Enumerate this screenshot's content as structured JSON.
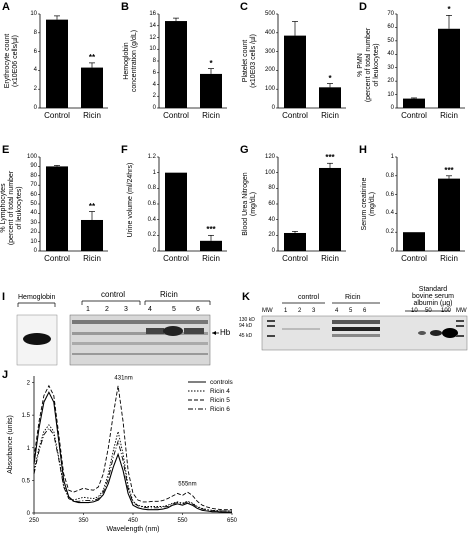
{
  "bar_panels": [
    {
      "id": "A",
      "ylabel": "Erythrocyte count\n(x10E06 cells/µl)",
      "ticks": [
        "0",
        "2",
        "4",
        "6",
        "8",
        "10"
      ],
      "ylim": [
        0,
        10
      ]
    },
    {
      "id": "B",
      "ylabel": "Hemoglobin\nconcentration (g/dL)",
      "ticks": [
        "0",
        "2",
        "4",
        "6",
        "8",
        "10",
        "12",
        "14",
        "16"
      ],
      "ylim": [
        0,
        16
      ]
    },
    {
      "id": "C",
      "ylabel": "Platelet count\n(x10E03 cells /µl)",
      "ticks": [
        "0",
        "100",
        "200",
        "300",
        "400",
        "500"
      ],
      "ylim": [
        0,
        500
      ]
    },
    {
      "id": "D",
      "ylabel": "% PMN\n(percent of total number\nof leukocytes)",
      "ticks": [
        "0",
        "10",
        "20",
        "30",
        "40",
        "50",
        "60",
        "70"
      ],
      "ylim": [
        0,
        70
      ]
    },
    {
      "id": "E",
      "ylabel": "% Lymphocytes\n(percent of total number\nof leukocytes)",
      "ticks": [
        "0",
        "10",
        "20",
        "30",
        "40",
        "50",
        "60",
        "70",
        "80",
        "90",
        "100"
      ],
      "ylim": [
        0,
        100
      ]
    },
    {
      "id": "F",
      "ylabel": "Urine volume (ml/24hrs)",
      "ticks": [
        "0",
        "0.2",
        "0.4",
        "0.6",
        "0.8",
        "1",
        "1.2"
      ],
      "ylim": [
        0,
        1.2
      ]
    },
    {
      "id": "G",
      "ylabel": "Blood Urea Nitrogen\n(mg/dL)",
      "ticks": [
        "0",
        "20",
        "40",
        "60",
        "80",
        "100",
        "120"
      ],
      "ylim": [
        0,
        120
      ]
    },
    {
      "id": "H",
      "ylabel": "Serum creatinine\n(mg/dL)",
      "ticks": [
        "0",
        "0.2",
        "0.4",
        "0.6",
        "0.8",
        "1"
      ],
      "ylim": [
        0,
        1
      ]
    }
  ],
  "chart_data": [
    {
      "type": "bar",
      "panel": "A",
      "categories": [
        "Control",
        "Ricin"
      ],
      "values": [
        9.4,
        4.3
      ],
      "errors": [
        0.4,
        0.5
      ],
      "significance": [
        "",
        "**"
      ],
      "ylabel": "Erythrocyte count (x10E06 cells/µl)",
      "ylim": [
        0,
        10
      ]
    },
    {
      "type": "bar",
      "panel": "B",
      "categories": [
        "Control",
        "Ricin"
      ],
      "values": [
        14.8,
        5.8
      ],
      "errors": [
        0.5,
        0.9
      ],
      "significance": [
        "",
        "*"
      ],
      "ylabel": "Hemoglobin concentration (g/dL)",
      "ylim": [
        0,
        16
      ]
    },
    {
      "type": "bar",
      "panel": "C",
      "categories": [
        "Control",
        "Ricin"
      ],
      "values": [
        385,
        110
      ],
      "errors": [
        75,
        20
      ],
      "significance": [
        "",
        "*"
      ],
      "ylabel": "Platelet count (x10E03 cells /µl)",
      "ylim": [
        0,
        500
      ]
    },
    {
      "type": "bar",
      "panel": "D",
      "categories": [
        "Control",
        "Ricin"
      ],
      "values": [
        7,
        59
      ],
      "errors": [
        0.5,
        10
      ],
      "significance": [
        "",
        "*"
      ],
      "ylabel": "% PMN (percent of total number of leukocytes)",
      "ylim": [
        0,
        70
      ]
    },
    {
      "type": "bar",
      "panel": "E",
      "categories": [
        "Control",
        "Ricin"
      ],
      "values": [
        90,
        33
      ],
      "errors": [
        1,
        9
      ],
      "significance": [
        "",
        "**"
      ],
      "ylabel": "% Lymphocytes (percent of total number of leukocytes)",
      "ylim": [
        0,
        100
      ]
    },
    {
      "type": "bar",
      "panel": "F",
      "categories": [
        "Control",
        "Ricin"
      ],
      "values": [
        1.0,
        0.13
      ],
      "errors": [
        0,
        0.07
      ],
      "significance": [
        "",
        "***"
      ],
      "ylabel": "Urine volume (ml/24hrs)",
      "ylim": [
        0,
        1.2
      ]
    },
    {
      "type": "bar",
      "panel": "G",
      "categories": [
        "Control",
        "Ricin"
      ],
      "values": [
        23,
        106
      ],
      "errors": [
        2,
        6
      ],
      "significance": [
        "",
        "***"
      ],
      "ylabel": "Blood Urea Nitrogen (mg/dL)",
      "ylim": [
        0,
        120
      ]
    },
    {
      "type": "bar",
      "panel": "H",
      "categories": [
        "Control",
        "Ricin"
      ],
      "values": [
        0.2,
        0.77
      ],
      "errors": [
        0,
        0.03
      ],
      "significance": [
        "",
        "***"
      ],
      "ylabel": "Serum creatinine (mg/dL)",
      "ylim": [
        0,
        1
      ]
    },
    {
      "type": "line",
      "panel": "J",
      "x": [
        250,
        260,
        270,
        280,
        290,
        300,
        310,
        320,
        330,
        340,
        350,
        360,
        370,
        380,
        390,
        400,
        410,
        420,
        430,
        440,
        450,
        460,
        470,
        480,
        490,
        500,
        510,
        520,
        530,
        540,
        550,
        560,
        570,
        580,
        590,
        600,
        610,
        620,
        630,
        640,
        650
      ],
      "series": [
        {
          "name": "controls",
          "values": [
            0.75,
            1.3,
            1.7,
            1.85,
            1.7,
            1.1,
            0.5,
            0.25,
            0.18,
            0.16,
            0.16,
            0.16,
            0.17,
            0.2,
            0.28,
            0.45,
            0.7,
            0.9,
            0.65,
            0.3,
            0.12,
            0.08,
            0.06,
            0.05,
            0.05,
            0.05,
            0.06,
            0.08,
            0.12,
            0.14,
            0.12,
            0.15,
            0.12,
            0.07,
            0.04,
            0.03,
            0.02,
            0.02,
            0.01,
            0.01,
            0.01
          ]
        },
        {
          "name": "Ricin 4",
          "values": [
            0.65,
            1.0,
            1.25,
            1.35,
            1.25,
            0.85,
            0.42,
            0.24,
            0.2,
            0.22,
            0.24,
            0.23,
            0.22,
            0.25,
            0.35,
            0.6,
            0.95,
            1.25,
            0.9,
            0.42,
            0.18,
            0.12,
            0.1,
            0.1,
            0.1,
            0.1,
            0.1,
            0.12,
            0.15,
            0.17,
            0.15,
            0.18,
            0.15,
            0.1,
            0.07,
            0.05,
            0.04,
            0.04,
            0.03,
            0.03,
            0.03
          ]
        },
        {
          "name": "Ricin 5",
          "values": [
            0.85,
            1.4,
            1.8,
            1.95,
            1.8,
            1.2,
            0.6,
            0.35,
            0.32,
            0.35,
            0.38,
            0.36,
            0.35,
            0.4,
            0.6,
            1.0,
            1.5,
            1.95,
            1.4,
            0.65,
            0.3,
            0.2,
            0.17,
            0.17,
            0.18,
            0.18,
            0.19,
            0.22,
            0.26,
            0.3,
            0.27,
            0.32,
            0.27,
            0.18,
            0.12,
            0.09,
            0.07,
            0.06,
            0.05,
            0.05,
            0.05
          ]
        },
        {
          "name": "Ricin 6",
          "values": [
            0.6,
            0.95,
            1.2,
            1.3,
            1.2,
            0.82,
            0.4,
            0.22,
            0.18,
            0.18,
            0.19,
            0.19,
            0.19,
            0.22,
            0.32,
            0.52,
            0.85,
            1.1,
            0.8,
            0.38,
            0.16,
            0.11,
            0.09,
            0.08,
            0.08,
            0.08,
            0.09,
            0.1,
            0.14,
            0.16,
            0.14,
            0.17,
            0.14,
            0.09,
            0.06,
            0.05,
            0.04,
            0.03,
            0.03,
            0.03,
            0.03
          ]
        }
      ],
      "annotations": [
        "431nm",
        "555nm"
      ],
      "xlabel": "Wavelength (nm)",
      "ylabel": "Absorbance (units)",
      "xticks": [
        "250",
        "350",
        "450",
        "550",
        "650"
      ],
      "xlim": [
        250,
        650
      ],
      "ylim": [
        0,
        2.1
      ],
      "yticks": [
        "0",
        "0.5",
        "1",
        "1.5",
        "2"
      ],
      "legend_position": "top-right"
    }
  ],
  "gel_I": {
    "label": "I",
    "hemoglobin_label": "Hemoglobin",
    "control_label": "control",
    "ricin_label": "Ricin",
    "lanes": [
      "1",
      "2",
      "3",
      "4",
      "5",
      "6"
    ],
    "band_label": "Hb"
  },
  "gel_K": {
    "label": "K",
    "control_label": "control",
    "ricin_label": "Ricin",
    "standard_label": "Standard\nbovine serum\nalbumin (µg)",
    "lanes": [
      "MW",
      "1",
      "2",
      "3",
      "4",
      "5",
      "6",
      "10",
      "50",
      "100",
      "MW"
    ],
    "mw_markers": [
      "130 kD",
      "94 kD",
      "45 kD"
    ]
  },
  "panel_J_label": "J"
}
